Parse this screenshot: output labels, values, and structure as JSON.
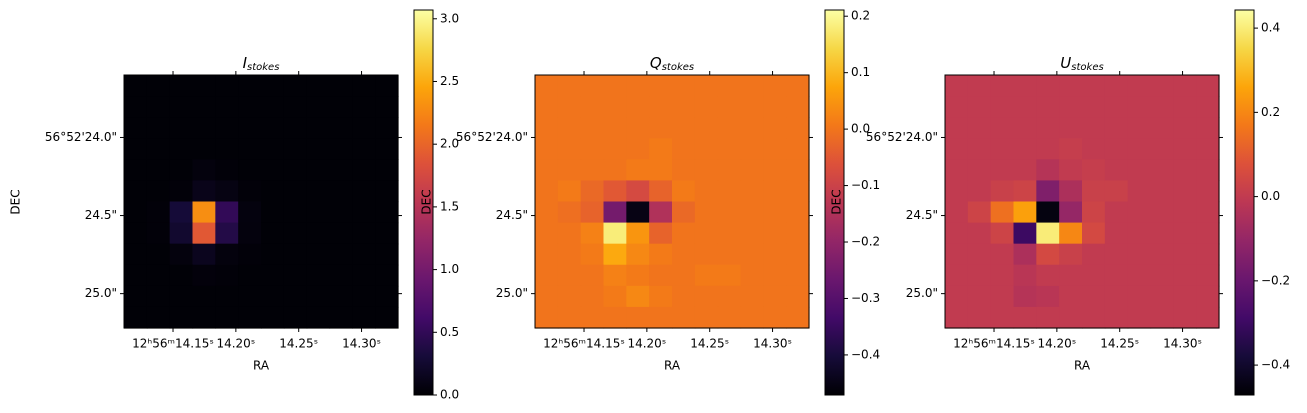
{
  "chart_data": [
    {
      "type": "heatmap",
      "title": "I",
      "title_sub": "stokes",
      "x_label": "RA",
      "y_label": "DEC",
      "colormap": "inferno",
      "xlim": [
        14.111,
        14.329
      ],
      "ylim": [
        25.22,
        23.6
      ],
      "xticks": [
        {
          "value": 14.15,
          "label": "12ʰ56ᵐ14.15ˢ"
        },
        {
          "value": 14.2,
          "label": "14.20ˢ"
        },
        {
          "value": 14.25,
          "label": "14.25ˢ"
        },
        {
          "value": 14.3,
          "label": "14.30ˢ"
        }
      ],
      "yticks": [
        {
          "value": 24.0,
          "label": "56°52'24.0\""
        },
        {
          "value": 24.5,
          "label": "24.5\""
        },
        {
          "value": 25.0,
          "label": "25.0\""
        }
      ],
      "zlim": [
        0,
        3.07
      ],
      "zticks": [
        {
          "value": 0,
          "label": "0.0"
        },
        0.5,
        {
          "value": 1,
          "label": "1.0"
        },
        1.5,
        {
          "value": 2,
          "label": "2.0"
        },
        2.5,
        {
          "value": 3,
          "label": "3.0"
        }
      ],
      "z": [
        [
          0.02,
          0.02,
          0.02,
          0.02,
          0.02,
          0.02,
          0.02,
          0.02,
          0.02,
          0.02,
          0.02,
          0.02
        ],
        [
          0.02,
          0.02,
          0.02,
          0.02,
          0.02,
          0.02,
          0.02,
          0.02,
          0.02,
          0.02,
          0.02,
          0.02
        ],
        [
          0.02,
          0.02,
          0.02,
          0.02,
          0.02,
          0.02,
          0.02,
          0.02,
          0.02,
          0.02,
          0.02,
          0.02
        ],
        [
          0.02,
          0.02,
          0.02,
          0.02,
          0.02,
          0.02,
          0.02,
          0.02,
          0.02,
          0.02,
          0.02,
          0.02
        ],
        [
          0.02,
          0.02,
          0.02,
          0.05,
          0.03,
          0.02,
          0.02,
          0.02,
          0.02,
          0.02,
          0.02,
          0.02
        ],
        [
          0.02,
          0.02,
          0.03,
          0.12,
          0.08,
          0.03,
          0.02,
          0.02,
          0.02,
          0.02,
          0.02,
          0.02
        ],
        [
          0.02,
          0.03,
          0.3,
          2.3,
          0.5,
          0.06,
          0.02,
          0.02,
          0.02,
          0.02,
          0.02,
          0.02
        ],
        [
          0.02,
          0.03,
          0.25,
          1.9,
          0.4,
          0.05,
          0.02,
          0.02,
          0.02,
          0.02,
          0.02,
          0.02
        ],
        [
          0.02,
          0.02,
          0.05,
          0.15,
          0.05,
          0.03,
          0.02,
          0.02,
          0.02,
          0.02,
          0.02,
          0.02
        ],
        [
          0.02,
          0.02,
          0.02,
          0.04,
          0.03,
          0.02,
          0.02,
          0.02,
          0.02,
          0.02,
          0.02,
          0.02
        ],
        [
          0.02,
          0.02,
          0.02,
          0.02,
          0.02,
          0.02,
          0.02,
          0.02,
          0.02,
          0.02,
          0.02,
          0.02
        ],
        [
          0.02,
          0.02,
          0.02,
          0.02,
          0.02,
          0.02,
          0.02,
          0.02,
          0.02,
          0.02,
          0.02,
          0.02
        ]
      ]
    },
    {
      "type": "heatmap",
      "title": "Q",
      "title_sub": "stokes",
      "x_label": "RA",
      "y_label": "DEC",
      "colormap": "inferno",
      "xlim": [
        14.111,
        14.329
      ],
      "ylim": [
        25.22,
        23.6
      ],
      "xticks": [
        {
          "value": 14.15,
          "label": "12ʰ56ᵐ14.15ˢ"
        },
        {
          "value": 14.2,
          "label": "14.20ˢ"
        },
        {
          "value": 14.25,
          "label": "14.25ˢ"
        },
        {
          "value": 14.3,
          "label": "14.30ˢ"
        }
      ],
      "yticks": [
        {
          "value": 24.0,
          "label": "56°52'24.0\""
        },
        {
          "value": 24.5,
          "label": "24.5\""
        },
        {
          "value": 25.0,
          "label": "25.0\""
        }
      ],
      "zlim": [
        -0.471,
        0.211
      ],
      "zticks": [
        {
          "value": -0.4,
          "label": "−0.4"
        },
        {
          "value": -0.3,
          "label": "−0.3"
        },
        {
          "value": -0.2,
          "label": "−0.2"
        },
        {
          "value": -0.1,
          "label": "−0.1"
        },
        {
          "value": 0,
          "label": "0.0"
        },
        0.1,
        0.2
      ],
      "z": [
        [
          0,
          0,
          0,
          0,
          0,
          0,
          0,
          0,
          0,
          0,
          0,
          0
        ],
        [
          0,
          0,
          0,
          0,
          0,
          0,
          0,
          0,
          0,
          0,
          0,
          0
        ],
        [
          0,
          0,
          0,
          0,
          0,
          0,
          0,
          0,
          0,
          0,
          0,
          0
        ],
        [
          0,
          0,
          0,
          0,
          0,
          0.01,
          0,
          0,
          0,
          0,
          0,
          0
        ],
        [
          0,
          0,
          0,
          0,
          0.01,
          0.01,
          0,
          0,
          0,
          0,
          0,
          0
        ],
        [
          0,
          0.01,
          -0.02,
          -0.05,
          -0.08,
          -0.03,
          0.01,
          0,
          0,
          0,
          0,
          0
        ],
        [
          0,
          -0.01,
          -0.03,
          -0.25,
          -0.45,
          -0.15,
          -0.02,
          0,
          0,
          0,
          0,
          0
        ],
        [
          0,
          0,
          0.02,
          0.18,
          0.05,
          -0.03,
          0,
          0,
          0,
          0,
          0,
          0
        ],
        [
          0,
          0,
          0.01,
          0.08,
          0.03,
          0.01,
          0,
          0,
          0,
          0,
          0,
          0
        ],
        [
          0,
          0,
          0,
          0.02,
          0.01,
          0,
          0,
          0.01,
          0.01,
          0,
          0,
          0
        ],
        [
          0,
          0,
          0,
          0.01,
          0.03,
          0.01,
          0,
          0,
          0,
          0,
          0,
          0
        ],
        [
          0,
          0,
          0,
          0,
          0,
          0,
          0,
          0,
          0,
          0,
          0,
          0
        ]
      ]
    },
    {
      "type": "heatmap",
      "title": "U",
      "title_sub": "stokes",
      "x_label": "RA",
      "y_label": "DEC",
      "colormap": "inferno",
      "xlim": [
        14.111,
        14.329
      ],
      "ylim": [
        25.22,
        23.6
      ],
      "xticks": [
        {
          "value": 14.15,
          "label": "12ʰ56ᵐ14.15ˢ"
        },
        {
          "value": 14.2,
          "label": "14.20ˢ"
        },
        {
          "value": 14.25,
          "label": "14.25ˢ"
        },
        {
          "value": 14.3,
          "label": "14.30ˢ"
        }
      ],
      "yticks": [
        {
          "value": 24.0,
          "label": "56°52'24.0\""
        },
        {
          "value": 24.5,
          "label": "24.5\""
        },
        {
          "value": 25.0,
          "label": "25.0\""
        }
      ],
      "zlim": [
        -0.471,
        0.443
      ],
      "zticks": [
        {
          "value": -0.4,
          "label": "−0.4"
        },
        {
          "value": -0.2,
          "label": "−0.2"
        },
        {
          "value": 0,
          "label": "0.0"
        },
        0.2,
        0.4
      ],
      "z": [
        [
          0,
          0,
          0,
          0,
          0,
          0,
          0,
          0,
          0,
          0,
          0,
          0
        ],
        [
          0,
          0,
          0,
          0,
          0,
          0,
          0,
          0,
          0,
          0,
          0,
          0
        ],
        [
          0,
          0,
          0,
          0,
          0,
          0,
          0,
          0,
          0,
          0,
          0,
          0
        ],
        [
          0,
          0,
          0,
          0,
          0,
          0.01,
          0,
          0,
          0,
          0,
          0,
          0
        ],
        [
          0,
          0,
          0,
          0,
          -0.03,
          0,
          0.01,
          0,
          0,
          0,
          0,
          0
        ],
        [
          0,
          0,
          0.02,
          0.03,
          -0.15,
          -0.05,
          0.02,
          0.02,
          0,
          0,
          0,
          0
        ],
        [
          0,
          0.03,
          0.15,
          0.25,
          -0.45,
          -0.1,
          0.03,
          0,
          0,
          0,
          0,
          0
        ],
        [
          0,
          0,
          0.03,
          -0.3,
          0.4,
          0.2,
          0.05,
          0,
          0,
          0,
          0,
          0
        ],
        [
          0,
          0,
          0,
          -0.05,
          0.05,
          0.02,
          0,
          0,
          0,
          0,
          0,
          0
        ],
        [
          0,
          0,
          0,
          -0.02,
          0,
          0,
          0,
          0,
          0,
          0,
          0,
          0
        ],
        [
          0,
          0,
          0,
          -0.03,
          -0.02,
          0,
          0,
          0,
          0,
          0,
          0,
          0
        ],
        [
          0,
          0,
          0,
          0,
          0,
          0,
          0,
          0,
          0,
          0,
          0,
          0
        ]
      ]
    }
  ]
}
